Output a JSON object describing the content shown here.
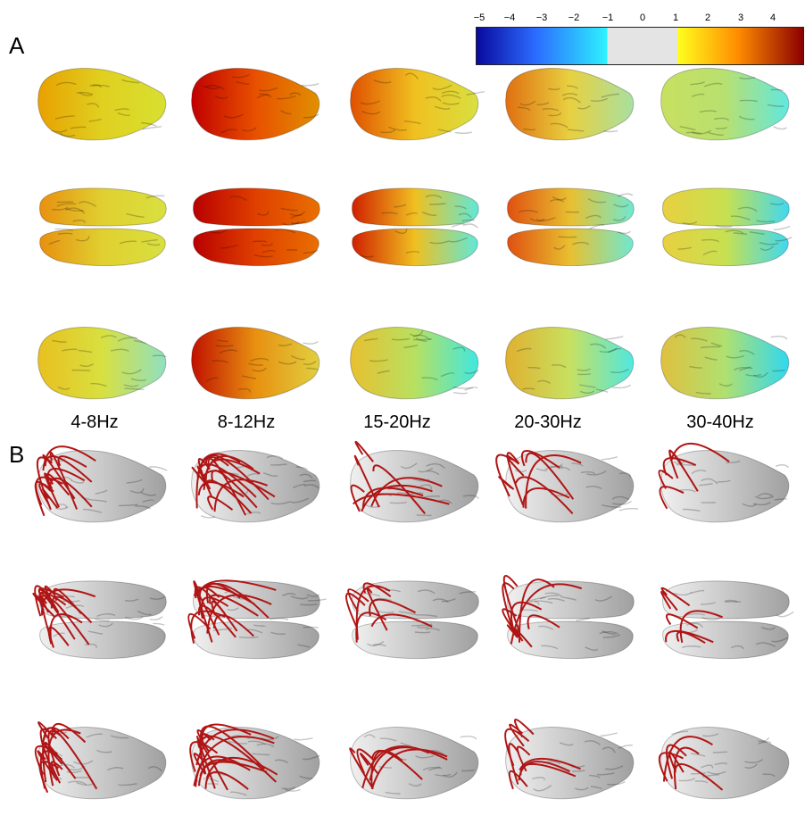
{
  "panels": {
    "a": "A",
    "b": "B"
  },
  "colorbar": {
    "ticks": [
      "−5",
      "−4",
      "−3",
      "−2",
      "−1",
      "0",
      "1",
      "2",
      "3",
      "4"
    ],
    "colors": {
      "neg_low": "#0a0a9e",
      "neg_mid": "#2b6bff",
      "neg_high": "#2ef2ff",
      "neutral": "#e4e4e4",
      "pos_low": "#ffff1e",
      "pos_mid": "#ff8c00",
      "pos_high": "#8b0000"
    }
  },
  "frequency_bands": [
    "4-8Hz",
    "8-12Hz",
    "15-20Hz",
    "20-30Hz",
    "30-40Hz"
  ],
  "views": [
    "lateral",
    "dorsal",
    "medial"
  ],
  "colors": {
    "connection": "#b01515",
    "cortex_gray": "#c9c9c9"
  }
}
